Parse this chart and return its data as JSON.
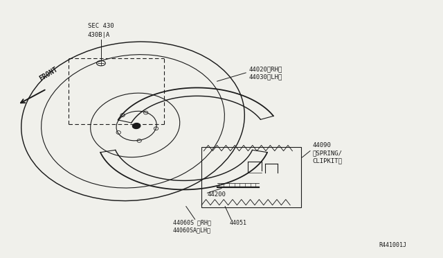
{
  "bg_color": "#f0f0eb",
  "line_color": "#1a1a1a",
  "labels": {
    "front": "FRONT",
    "sec430": "SEC 430",
    "sec430b": "430B|A",
    "part44020": "44020〈RH〉",
    "part44030": "44030〈LH〉",
    "part44060s": "44060S 〈RH〉",
    "part44060sa": "44060SA〈LH〉",
    "part44051": "44051",
    "part44200": "44200",
    "part44090": "44090",
    "part44090b": "〈SPRING/",
    "part44090c": "CLIPKIT〉",
    "ref": "R441001J"
  }
}
